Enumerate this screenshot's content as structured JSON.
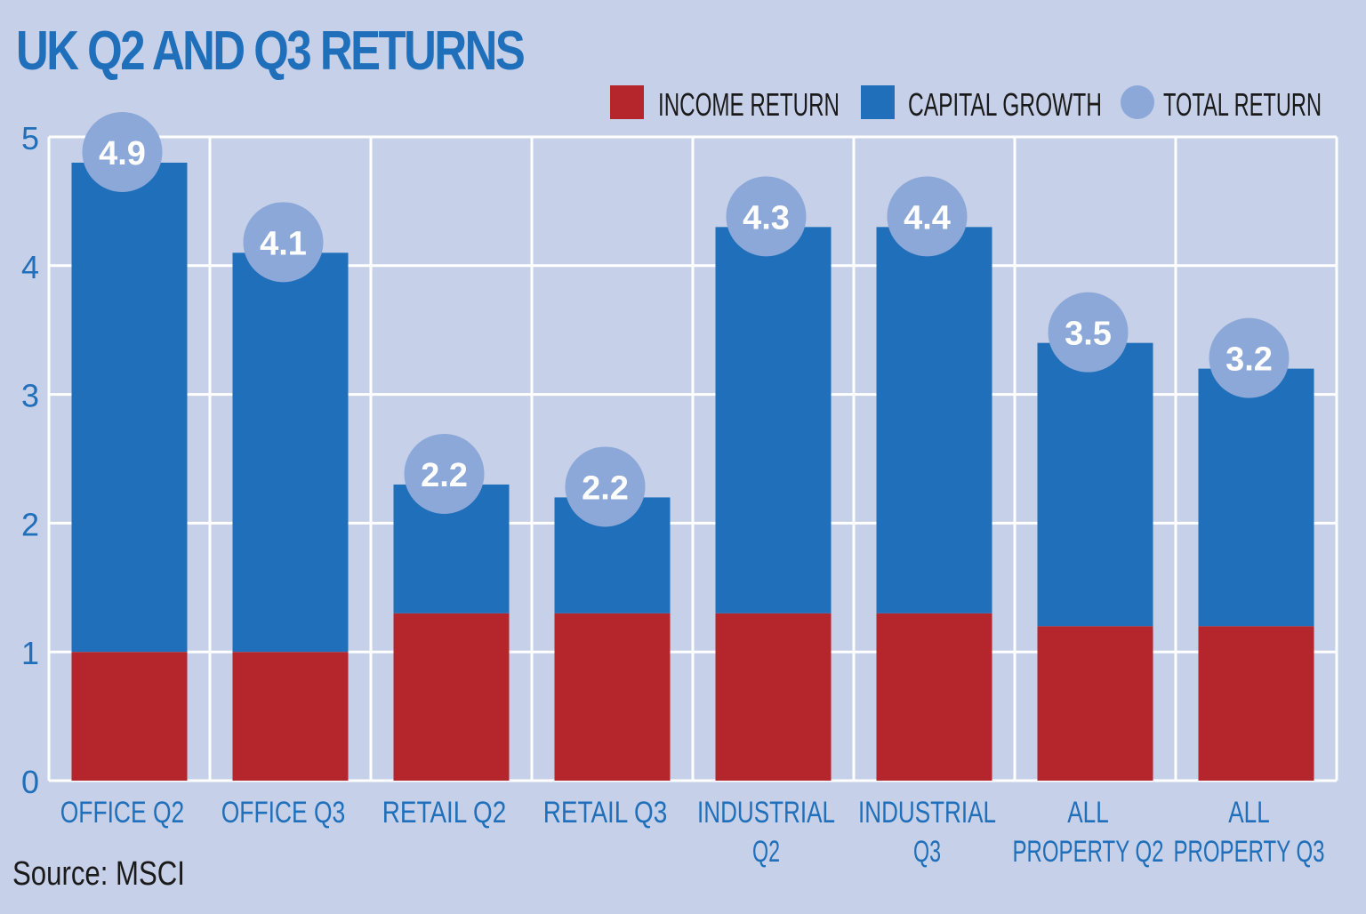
{
  "title": "UK Q2 AND Q3 RETURNS",
  "source": "Source: MSCI",
  "colors": {
    "background": "#c6d0e8",
    "income": "#b4262c",
    "capital": "#1f6fba",
    "total": "#8ca8d8",
    "grid": "#ffffff",
    "axis_text": "#1f6fba"
  },
  "chart_data": {
    "type": "bar",
    "stacked": true,
    "title": "UK Q2 AND Q3 RETURNS",
    "categories": [
      [
        "OFFICE Q2"
      ],
      [
        "OFFICE Q3"
      ],
      [
        "RETAIL Q2"
      ],
      [
        "RETAIL Q3"
      ],
      [
        "INDUSTRIAL",
        "Q2"
      ],
      [
        "INDUSTRIAL",
        "Q3"
      ],
      [
        "ALL",
        "PROPERTY Q2"
      ],
      [
        "ALL",
        "PROPERTY Q3"
      ]
    ],
    "series": [
      {
        "name": "INCOME RETURN",
        "values": [
          1.0,
          1.0,
          1.3,
          1.3,
          1.3,
          1.3,
          1.2,
          1.2
        ]
      },
      {
        "name": "CAPITAL GROWTH",
        "values": [
          3.8,
          3.1,
          1.0,
          0.9,
          3.0,
          3.0,
          2.2,
          2.0
        ]
      }
    ],
    "total_return": {
      "name": "TOTAL RETURN",
      "values": [
        4.9,
        4.1,
        2.2,
        2.2,
        4.3,
        4.4,
        3.5,
        3.2
      ],
      "labels": [
        "4.9",
        "4.1",
        "2.2",
        "2.2",
        "4.3",
        "4.4",
        "3.5",
        "3.2"
      ]
    },
    "ylim": [
      0,
      5
    ],
    "yticks": [
      "0",
      "1",
      "2",
      "3",
      "4",
      "5"
    ],
    "grid": true,
    "legend_position": "top-right"
  }
}
